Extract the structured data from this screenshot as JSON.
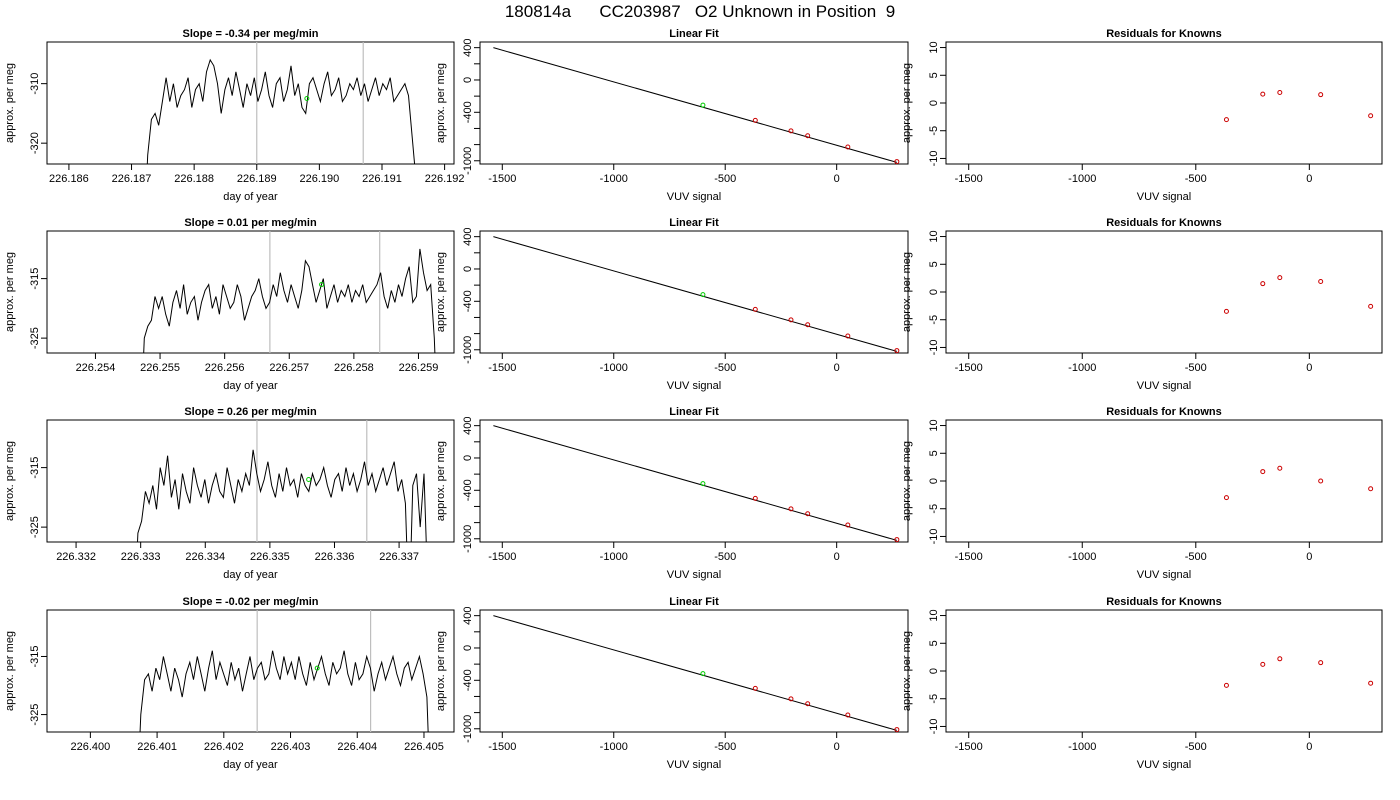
{
  "page": {
    "title": "180814a      CC203987   O2 Unknown in Position  9"
  },
  "chart_data": [
    {
      "type": "line",
      "row": 1,
      "title": "Slope =  -0.34  per meg/min",
      "xlabel": "day of year",
      "ylabel": "approx. per meg",
      "xlim": [
        226.18565,
        226.19215
      ],
      "ylim": [
        -323.5,
        -303
      ],
      "xticks": [
        "226.186",
        "226.187",
        "226.188",
        "226.189",
        "226.190",
        "226.191",
        "226.192"
      ],
      "yticks": [
        "-320",
        "-310"
      ],
      "vlines": [
        226.189,
        226.1907
      ],
      "marker": {
        "x": 226.1898,
        "y": -312.5
      },
      "x_start": 226.1872,
      "x_end": 226.1916,
      "trace": [
        -336,
        -322,
        -316,
        -315,
        -317,
        -313,
        -309,
        -313,
        -310,
        -314,
        -312,
        -311,
        -309,
        -314,
        -311,
        -310,
        -313,
        -308,
        -306,
        -307,
        -310,
        -315,
        -311,
        -309,
        -312,
        -308,
        -311,
        -314,
        -310,
        -312,
        -309,
        -313,
        -311,
        -308,
        -312,
        -314,
        -310,
        -309,
        -313,
        -311,
        -307,
        -312,
        -310,
        -314,
        -315,
        -310,
        -309,
        -311,
        -313,
        -310,
        -308,
        -312,
        -311,
        -309,
        -313,
        -312,
        -310,
        -311,
        -309,
        -312,
        -310,
        -313,
        -311,
        -309,
        -312,
        -310,
        -311,
        -309,
        -313,
        -312,
        -311,
        -310,
        -312,
        -319,
        -326,
        -336
      ]
    },
    {
      "type": "scatter",
      "row": 1,
      "title": "Linear Fit",
      "xlabel": "VUV signal",
      "ylabel": "approx. per meg",
      "xlim": [
        -1600,
        320
      ],
      "ylim": [
        -1040,
        470
      ],
      "xticks": [
        -1500,
        -1000,
        -500,
        0
      ],
      "yticks": [
        400,
        0,
        -400,
        -1000
      ],
      "yminor": [
        200,
        -200,
        -600,
        -800
      ],
      "fit_line": {
        "x": [
          -1540,
          270
        ],
        "y": [
          400,
          -1020
        ]
      },
      "knowns": [
        {
          "x": -365,
          "y": -500
        },
        {
          "x": -205,
          "y": -630
        },
        {
          "x": -130,
          "y": -690
        },
        {
          "x": 50,
          "y": -830
        },
        {
          "x": 270,
          "y": -1010
        }
      ],
      "unknown": {
        "x": -600,
        "y": -312
      }
    },
    {
      "type": "scatter",
      "row": 1,
      "title": "Residuals for Knowns",
      "xlabel": "VUV signal",
      "ylabel": "approx. per meg",
      "xlim": [
        -1600,
        320
      ],
      "ylim": [
        -11,
        11
      ],
      "xticks": [
        -1500,
        -1000,
        -500,
        0
      ],
      "yticks": [
        10,
        5,
        0,
        -5,
        -10
      ],
      "points": [
        {
          "x": -365,
          "y": -3.0
        },
        {
          "x": -205,
          "y": 1.6
        },
        {
          "x": -130,
          "y": 1.9
        },
        {
          "x": 50,
          "y": 1.5
        },
        {
          "x": 270,
          "y": -2.3
        }
      ]
    },
    {
      "type": "line",
      "row": 2,
      "title": "Slope =  0.01  per meg/min",
      "xlabel": "day of year",
      "ylabel": "approx. per meg",
      "xlim": [
        226.25325,
        226.25955
      ],
      "ylim": [
        -327.5,
        -307
      ],
      "xticks": [
        "226.254",
        "226.255",
        "226.256",
        "226.257",
        "226.258",
        "226.259"
      ],
      "yticks": [
        "-325",
        "-315"
      ],
      "vlines": [
        226.2567,
        226.2584
      ],
      "marker": {
        "x": 226.2575,
        "y": -316
      },
      "x_start": 226.2547,
      "x_end": 226.2593,
      "trace": [
        -340,
        -325,
        -323,
        -322,
        -318,
        -320,
        -318,
        -321,
        -323,
        -319,
        -317,
        -320,
        -316,
        -321,
        -319,
        -318,
        -322,
        -319,
        -317,
        -316,
        -320,
        -318,
        -321,
        -316,
        -318,
        -320,
        -319,
        -316,
        -318,
        -322,
        -320,
        -318,
        -317,
        -315,
        -318,
        -320,
        -319,
        -316,
        -318,
        -314,
        -317,
        -319,
        -316,
        -318,
        -320,
        -317,
        -312,
        -313,
        -316,
        -319,
        -317,
        -315,
        -320,
        -318,
        -316,
        -319,
        -317,
        -318,
        -316,
        -319,
        -317,
        -318,
        -316,
        -319,
        -318,
        -317,
        -316,
        -314,
        -318,
        -320,
        -317,
        -319,
        -316,
        -318,
        -315,
        -313,
        -319,
        -318,
        -310,
        -314,
        -317,
        -316,
        -325,
        -340
      ]
    },
    {
      "type": "scatter",
      "row": 2,
      "title": "Linear Fit",
      "xlabel": "VUV signal",
      "ylabel": "approx. per meg",
      "xlim": [
        -1600,
        320
      ],
      "ylim": [
        -1040,
        470
      ],
      "xticks": [
        -1500,
        -1000,
        -500,
        0
      ],
      "yticks": [
        400,
        0,
        -400,
        -1000
      ],
      "yminor": [
        200,
        -200,
        -600,
        -800
      ],
      "fit_line": {
        "x": [
          -1540,
          270
        ],
        "y": [
          400,
          -1020
        ]
      },
      "knowns": [
        {
          "x": -365,
          "y": -500
        },
        {
          "x": -205,
          "y": -630
        },
        {
          "x": -130,
          "y": -690
        },
        {
          "x": 50,
          "y": -830
        },
        {
          "x": 270,
          "y": -1010
        }
      ],
      "unknown": {
        "x": -600,
        "y": -318
      }
    },
    {
      "type": "scatter",
      "row": 2,
      "title": "Residuals for Knowns",
      "xlabel": "VUV signal",
      "ylabel": "approx. per meg",
      "xlim": [
        -1600,
        320
      ],
      "ylim": [
        -11,
        11
      ],
      "xticks": [
        -1500,
        -1000,
        -500,
        0
      ],
      "yticks": [
        10,
        5,
        0,
        -5,
        -10
      ],
      "points": [
        {
          "x": -365,
          "y": -3.5
        },
        {
          "x": -205,
          "y": 1.5
        },
        {
          "x": -130,
          "y": 2.6
        },
        {
          "x": 50,
          "y": 1.9
        },
        {
          "x": 270,
          "y": -2.6
        }
      ]
    },
    {
      "type": "line",
      "row": 3,
      "title": "Slope =  0.26  per meg/min",
      "xlabel": "day of year",
      "ylabel": "approx. per meg",
      "xlim": [
        226.33155,
        226.33785
      ],
      "ylim": [
        -327.5,
        -307
      ],
      "xticks": [
        "226.332",
        "226.333",
        "226.334",
        "226.335",
        "226.336",
        "226.337"
      ],
      "yticks": [
        "-325",
        "-315"
      ],
      "vlines": [
        226.3348,
        226.3365
      ],
      "marker": {
        "x": 226.3356,
        "y": -317
      },
      "x_start": 226.3329,
      "x_end": 226.3375,
      "trace": [
        -340,
        -326,
        -324,
        -319,
        -321,
        -318,
        -322,
        -315,
        -318,
        -313,
        -320,
        -317,
        -322,
        -316,
        -319,
        -321,
        -315,
        -318,
        -320,
        -317,
        -321,
        -318,
        -316,
        -319,
        -320,
        -315,
        -318,
        -321,
        -317,
        -319,
        -316,
        -318,
        -312,
        -316,
        -319,
        -317,
        -314,
        -318,
        -320,
        -316,
        -319,
        -315,
        -318,
        -317,
        -320,
        -316,
        -318,
        -319,
        -316,
        -318,
        -317,
        -315,
        -318,
        -320,
        -317,
        -316,
        -319,
        -315,
        -318,
        -316,
        -319,
        -317,
        -314,
        -318,
        -316,
        -319,
        -317,
        -315,
        -318,
        -316,
        -314,
        -319,
        -317,
        -321,
        -340,
        -318,
        -316,
        -325,
        -316,
        -335,
        -340
      ]
    },
    {
      "type": "scatter",
      "row": 3,
      "title": "Linear Fit",
      "xlabel": "VUV signal",
      "ylabel": "approx. per meg",
      "xlim": [
        -1600,
        320
      ],
      "ylim": [
        -1040,
        470
      ],
      "xticks": [
        -1500,
        -1000,
        -500,
        0
      ],
      "yticks": [
        400,
        0,
        -400,
        -1000
      ],
      "yminor": [
        200,
        -200,
        -600,
        -800
      ],
      "fit_line": {
        "x": [
          -1540,
          270
        ],
        "y": [
          400,
          -1020
        ]
      },
      "knowns": [
        {
          "x": -365,
          "y": -500
        },
        {
          "x": -205,
          "y": -630
        },
        {
          "x": -130,
          "y": -690
        },
        {
          "x": 50,
          "y": -830
        },
        {
          "x": 270,
          "y": -1010
        }
      ],
      "unknown": {
        "x": -600,
        "y": -317
      }
    },
    {
      "type": "scatter",
      "row": 3,
      "title": "Residuals for Knowns",
      "xlabel": "VUV signal",
      "ylabel": "approx. per meg",
      "xlim": [
        -1600,
        320
      ],
      "ylim": [
        -11,
        11
      ],
      "xticks": [
        -1500,
        -1000,
        -500,
        0
      ],
      "yticks": [
        10,
        5,
        0,
        -5,
        -10
      ],
      "points": [
        {
          "x": -365,
          "y": -3.0
        },
        {
          "x": -205,
          "y": 1.7
        },
        {
          "x": -130,
          "y": 2.3
        },
        {
          "x": 50,
          "y": 0.0
        },
        {
          "x": 270,
          "y": -1.4
        }
      ]
    },
    {
      "type": "line",
      "row": 4,
      "title": "Slope =  -0.02  per meg/min",
      "xlabel": "day of year",
      "ylabel": "approx. per meg",
      "xlim": [
        226.39935,
        226.40545
      ],
      "ylim": [
        -328,
        -307
      ],
      "xticks": [
        "226.400",
        "226.401",
        "226.402",
        "226.403",
        "226.404",
        "226.405"
      ],
      "yticks": [
        "-325",
        "-315"
      ],
      "vlines": [
        226.4025,
        226.4042
      ],
      "marker": {
        "x": 226.4034,
        "y": -317
      },
      "x_start": 226.4007,
      "x_end": 226.4051,
      "trace": [
        -340,
        -325,
        -319,
        -318,
        -321,
        -317,
        -319,
        -315,
        -318,
        -321,
        -317,
        -319,
        -322,
        -318,
        -316,
        -319,
        -315,
        -318,
        -321,
        -317,
        -314,
        -319,
        -316,
        -318,
        -320,
        -316,
        -319,
        -317,
        -321,
        -318,
        -315,
        -319,
        -317,
        -316,
        -319,
        -318,
        -314,
        -317,
        -319,
        -315,
        -318,
        -316,
        -319,
        -315,
        -318,
        -320,
        -316,
        -319,
        -317,
        -315,
        -318,
        -320,
        -316,
        -318,
        -317,
        -314,
        -318,
        -320,
        -316,
        -319,
        -318,
        -315,
        -317,
        -321,
        -318,
        -316,
        -319,
        -317,
        -315,
        -318,
        -320,
        -317,
        -316,
        -319,
        -317,
        -315,
        -318,
        -322,
        -340
      ]
    },
    {
      "type": "scatter",
      "row": 4,
      "title": "Linear Fit",
      "xlabel": "VUV signal",
      "ylabel": "approx. per meg",
      "xlim": [
        -1600,
        320
      ],
      "ylim": [
        -1040,
        470
      ],
      "xticks": [
        -1500,
        -1000,
        -500,
        0
      ],
      "yticks": [
        400,
        0,
        -400,
        -1000
      ],
      "yminor": [
        200,
        -200,
        -600,
        -800
      ],
      "fit_line": {
        "x": [
          -1540,
          270
        ],
        "y": [
          400,
          -1020
        ]
      },
      "knowns": [
        {
          "x": -365,
          "y": -500
        },
        {
          "x": -205,
          "y": -630
        },
        {
          "x": -130,
          "y": -690
        },
        {
          "x": 50,
          "y": -830
        },
        {
          "x": 270,
          "y": -1010
        }
      ],
      "unknown": {
        "x": -600,
        "y": -317
      }
    },
    {
      "type": "scatter",
      "row": 4,
      "title": "Residuals for Knowns",
      "xlabel": "VUV signal",
      "ylabel": "approx. per meg",
      "xlim": [
        -1600,
        320
      ],
      "ylim": [
        -11,
        11
      ],
      "xticks": [
        -1500,
        -1000,
        -500,
        0
      ],
      "yticks": [
        10,
        5,
        0,
        -5,
        -10
      ],
      "points": [
        {
          "x": -365,
          "y": -2.6
        },
        {
          "x": -205,
          "y": 1.2
        },
        {
          "x": -130,
          "y": 2.2
        },
        {
          "x": 50,
          "y": 1.5
        },
        {
          "x": 270,
          "y": -2.2
        }
      ]
    }
  ],
  "colors": {
    "trace": "#000000",
    "unknown_marker": "#00cc00",
    "known_marker": "#cc0000",
    "vline": "#bebebe",
    "axis": "#000000"
  }
}
